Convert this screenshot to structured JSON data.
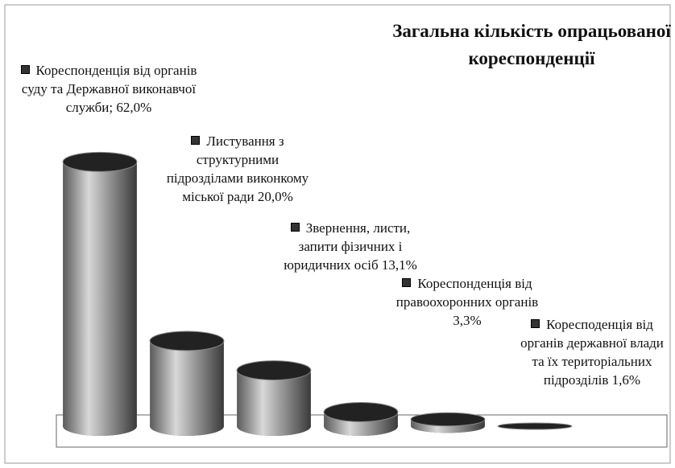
{
  "chart_data": {
    "type": "bar3d",
    "title": "Загальна кількість опрацьованої кореспонденції",
    "categories": [
      "Кореспонденція від органів суду та Державної виконавчої служби;",
      "Листування з структурними підрозділами виконкому міської ради",
      "Звернення, листи, запити фізичних і юридичних осіб",
      "Кореспонденція від правоохоронних органів",
      "Коресподенція від органів державної влади та їх територіальних підрозділів",
      null
    ],
    "values": [
      62.0,
      20.0,
      13.1,
      3.3,
      1.6,
      0
    ],
    "value_labels": [
      "62,0%",
      "20,0%",
      "13,1%",
      "3,3%",
      "1,6%",
      null
    ],
    "color": "#8a8a8a",
    "ylim": [
      0,
      70
    ]
  }
}
